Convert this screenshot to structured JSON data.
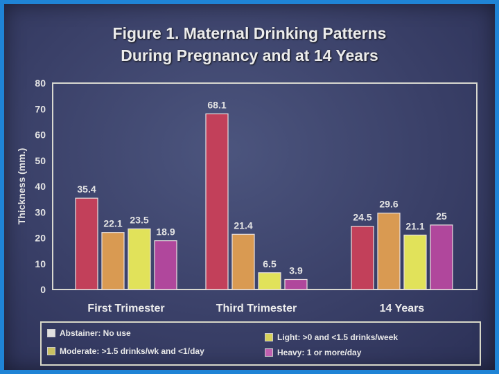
{
  "title_line1": "Figure 1.  Maternal Drinking Patterns",
  "title_line2": "During Pregnancy and at 14 Years",
  "chart_data": {
    "type": "bar",
    "ylabel": "Thickness (mm.)",
    "ylim": [
      0,
      80
    ],
    "yticks": [
      "0",
      "10",
      "20",
      "30",
      "40",
      "50",
      "60",
      "70",
      "80"
    ],
    "grid": false,
    "legend_placement": "bottom",
    "categories": [
      "First Trimester",
      "Third Trimester",
      "14 Years"
    ],
    "series": [
      {
        "name": "Abstainer: No use",
        "values": [
          35.4,
          68.1,
          24.5
        ],
        "labels": [
          "35.4",
          "68.1",
          "24.5"
        ],
        "color": "#c2405a",
        "legend_swatch": "#e0e0e0"
      },
      {
        "name": "Moderate: >1.5 drinks/wk and <1/day",
        "values": [
          22.1,
          21.4,
          29.6
        ],
        "labels": [
          "22.1",
          "21.4",
          "29.6"
        ],
        "color": "#d99a52",
        "legend_swatch": "#c8c062"
      },
      {
        "name": "Light: >0 and <1.5 drinks/week",
        "values": [
          23.5,
          6.5,
          21.1
        ],
        "labels": [
          "23.5",
          "6.5",
          "21.1"
        ],
        "color": "#e1e25a",
        "legend_swatch": "#d8d25a"
      },
      {
        "name": "Heavy: 1 or more/day",
        "values": [
          18.9,
          3.9,
          25
        ],
        "labels": [
          "18.9",
          "3.9",
          "25"
        ],
        "color": "#b0479c",
        "legend_swatch": "#c060b0"
      }
    ]
  }
}
